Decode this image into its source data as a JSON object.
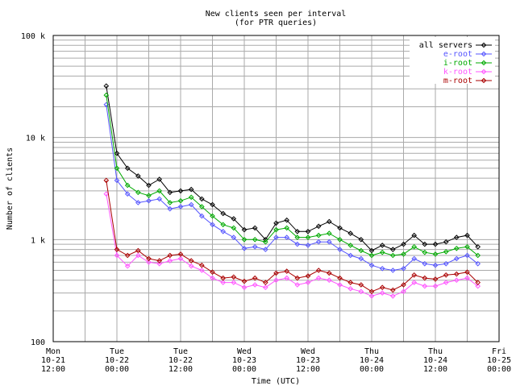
{
  "chart_data": {
    "type": "line",
    "title": [
      "New clients seen per interval",
      "(for PTR queries)"
    ],
    "xlabel": "Time (UTC)",
    "ylabel": "Number of clients",
    "yscale": "log",
    "ylim": [
      100,
      100000
    ],
    "y_ticks": [
      {
        "value": 100,
        "label": "100"
      },
      {
        "value": 1000,
        "label": "1 k"
      },
      {
        "value": 10000,
        "label": "10 k"
      },
      {
        "value": 100000,
        "label": "100 k"
      }
    ],
    "xlim": [
      "2004-10-21 12:00",
      "2004-10-25 00:00"
    ],
    "x_ticks": [
      {
        "value": "2004-10-21 12:00",
        "lines": [
          "Mon",
          "10-21",
          "12:00"
        ]
      },
      {
        "value": "2004-10-22 00:00",
        "lines": [
          "Tue",
          "10-22",
          "00:00"
        ]
      },
      {
        "value": "2004-10-22 12:00",
        "lines": [
          "Tue",
          "10-22",
          "12:00"
        ]
      },
      {
        "value": "2004-10-23 00:00",
        "lines": [
          "Wed",
          "10-23",
          "00:00"
        ]
      },
      {
        "value": "2004-10-23 12:00",
        "lines": [
          "Wed",
          "10-23",
          "12:00"
        ]
      },
      {
        "value": "2004-10-24 00:00",
        "lines": [
          "Thu",
          "10-24",
          "00:00"
        ]
      },
      {
        "value": "2004-10-24 12:00",
        "lines": [
          "Thu",
          "10-24",
          "12:00"
        ]
      },
      {
        "value": "2004-10-25 00:00",
        "lines": [
          "Fri",
          "10-25",
          "00:00"
        ]
      }
    ],
    "grid": true,
    "legend_position": "top-right",
    "x": [
      "2004-10-21 22:00",
      "2004-10-22 00:00",
      "2004-10-22 02:00",
      "2004-10-22 04:00",
      "2004-10-22 06:00",
      "2004-10-22 08:00",
      "2004-10-22 10:00",
      "2004-10-22 12:00",
      "2004-10-22 14:00",
      "2004-10-22 16:00",
      "2004-10-22 18:00",
      "2004-10-22 20:00",
      "2004-10-22 22:00",
      "2004-10-23 00:00",
      "2004-10-23 02:00",
      "2004-10-23 04:00",
      "2004-10-23 06:00",
      "2004-10-23 08:00",
      "2004-10-23 10:00",
      "2004-10-23 12:00",
      "2004-10-23 14:00",
      "2004-10-23 16:00",
      "2004-10-23 18:00",
      "2004-10-23 20:00",
      "2004-10-23 22:00",
      "2004-10-24 00:00",
      "2004-10-24 02:00",
      "2004-10-24 04:00",
      "2004-10-24 06:00",
      "2004-10-24 08:00",
      "2004-10-24 10:00",
      "2004-10-24 12:00",
      "2004-10-24 14:00",
      "2004-10-24 16:00",
      "2004-10-24 18:00",
      "2004-10-24 20:00"
    ],
    "series": [
      {
        "name": "all servers",
        "color": "#000000",
        "marker": "diamond",
        "values": [
          32000,
          7000,
          5000,
          4200,
          3400,
          3900,
          2900,
          3000,
          3100,
          2500,
          2200,
          1800,
          1600,
          1250,
          1300,
          1000,
          1450,
          1550,
          1200,
          1200,
          1350,
          1500,
          1300,
          1150,
          1000,
          780,
          880,
          800,
          900,
          1100,
          900,
          900,
          950,
          1050,
          1100,
          850
        ]
      },
      {
        "name": "e-root",
        "color": "#5555ff",
        "marker": "diamond",
        "values": [
          21000,
          3800,
          2800,
          2300,
          2400,
          2500,
          2000,
          2100,
          2200,
          1700,
          1400,
          1200,
          1050,
          820,
          850,
          800,
          1050,
          1050,
          900,
          880,
          950,
          950,
          800,
          700,
          650,
          560,
          520,
          500,
          520,
          650,
          580,
          560,
          580,
          650,
          700,
          580
        ]
      },
      {
        "name": "i-root",
        "color": "#00aa00",
        "marker": "diamond",
        "values": [
          26000,
          5000,
          3400,
          2900,
          2700,
          3000,
          2300,
          2400,
          2600,
          2100,
          1700,
          1400,
          1300,
          1000,
          1000,
          950,
          1250,
          1300,
          1050,
          1050,
          1100,
          1150,
          1000,
          880,
          780,
          700,
          750,
          700,
          720,
          850,
          750,
          720,
          760,
          820,
          850,
          700
        ]
      },
      {
        "name": "k-root",
        "color": "#ff55ff",
        "marker": "diamond",
        "values": [
          2800,
          700,
          550,
          700,
          600,
          580,
          620,
          650,
          550,
          500,
          420,
          380,
          380,
          340,
          360,
          340,
          400,
          420,
          360,
          380,
          420,
          400,
          360,
          330,
          310,
          280,
          300,
          280,
          310,
          380,
          350,
          350,
          380,
          400,
          420,
          350
        ]
      },
      {
        "name": "m-root",
        "color": "#aa0000",
        "marker": "diamond",
        "values": [
          3800,
          800,
          700,
          780,
          650,
          620,
          700,
          720,
          620,
          560,
          480,
          420,
          430,
          390,
          420,
          380,
          470,
          490,
          420,
          440,
          500,
          470,
          420,
          380,
          360,
          310,
          340,
          320,
          360,
          450,
          420,
          410,
          450,
          460,
          480,
          380
        ]
      }
    ]
  },
  "colors": {
    "grid": "#aaaaaa",
    "frame": "#000000",
    "background": "#ffffff"
  }
}
